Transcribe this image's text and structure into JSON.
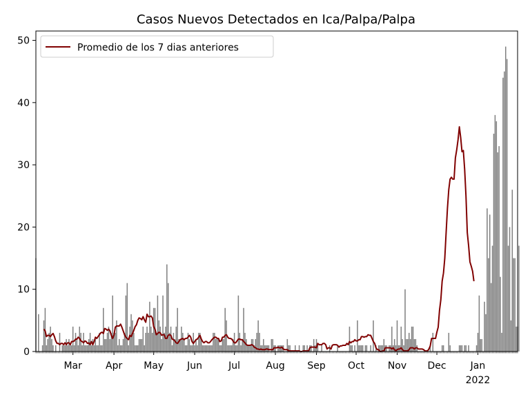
{
  "chart_data": {
    "type": "bar+line",
    "title": "Casos Nuevos Detectados en Ica/Palpa/Palpa",
    "xlabel": "",
    "ylabel": "",
    "x_start": "2021-02-01",
    "x_end": "2022-01-31",
    "ylim": [
      0,
      51.5
    ],
    "y_ticks": [
      0,
      10,
      20,
      30,
      40,
      50
    ],
    "x_ticks": [
      {
        "date": "2021-03-01",
        "label": "Mar",
        "sublabel": ""
      },
      {
        "date": "2021-04-01",
        "label": "Apr",
        "sublabel": ""
      },
      {
        "date": "2021-05-01",
        "label": "May",
        "sublabel": ""
      },
      {
        "date": "2021-06-01",
        "label": "Jun",
        "sublabel": ""
      },
      {
        "date": "2021-07-01",
        "label": "Jul",
        "sublabel": ""
      },
      {
        "date": "2021-08-01",
        "label": "Aug",
        "sublabel": ""
      },
      {
        "date": "2021-09-01",
        "label": "Sep",
        "sublabel": ""
      },
      {
        "date": "2021-10-01",
        "label": "Oct",
        "sublabel": ""
      },
      {
        "date": "2021-11-01",
        "label": "Nov",
        "sublabel": ""
      },
      {
        "date": "2021-12-01",
        "label": "Dec",
        "sublabel": ""
      },
      {
        "date": "2022-01-01",
        "label": "Jan",
        "sublabel": "2022"
      }
    ],
    "legend": {
      "location": "upper-left",
      "entries": [
        "Promedio de los 7 dias anteriores"
      ]
    },
    "grid": false,
    "series": [
      {
        "kind": "bar",
        "color": "#808080",
        "start_date": "2021-02-01",
        "values": [
          15,
          0,
          6,
          0,
          0,
          1,
          5,
          7,
          1,
          2,
          3,
          4,
          2,
          1,
          0,
          1,
          0,
          0,
          3,
          0,
          1,
          1,
          1,
          2,
          1,
          2,
          1,
          1,
          4,
          1,
          3,
          2,
          1,
          4,
          3,
          1,
          3,
          1,
          1,
          1,
          2,
          3,
          1,
          2,
          1,
          2,
          1,
          1,
          3,
          1,
          1,
          7,
          2,
          2,
          3,
          4,
          2,
          3,
          9,
          3,
          3,
          5,
          1,
          2,
          1,
          1,
          2,
          3,
          9,
          11,
          1,
          4,
          6,
          5,
          3,
          1,
          1,
          1,
          2,
          2,
          2,
          4,
          1,
          3,
          4,
          3,
          8,
          4,
          3,
          7,
          7,
          3,
          9,
          5,
          4,
          2,
          9,
          3,
          4,
          14,
          11,
          3,
          4,
          1,
          3,
          2,
          4,
          7,
          2,
          2,
          4,
          3,
          2,
          1,
          1,
          3,
          2,
          1,
          1,
          3,
          1,
          2,
          1,
          3,
          3,
          2,
          1,
          1,
          1,
          1,
          1,
          1,
          1,
          1,
          3,
          3,
          2,
          2,
          2,
          1,
          1,
          2,
          2,
          7,
          5,
          1,
          1,
          1,
          1,
          2,
          3,
          1,
          1,
          9,
          3,
          1,
          2,
          7,
          3,
          2,
          1,
          1,
          1,
          2,
          2,
          1,
          2,
          3,
          5,
          3,
          1,
          1,
          2,
          1,
          1,
          1,
          1,
          0,
          2,
          2,
          1,
          1,
          0,
          1,
          1,
          1,
          1,
          1,
          0,
          0,
          2,
          1,
          1,
          0,
          0,
          0,
          1,
          0,
          0,
          1,
          0,
          0,
          1,
          1,
          0,
          1,
          0,
          1,
          1,
          0,
          2,
          1,
          2,
          1,
          0,
          0,
          1,
          0,
          0,
          0,
          0,
          0,
          1,
          0,
          0,
          0,
          0,
          0,
          1,
          0,
          0,
          0,
          0,
          0,
          0,
          0,
          0,
          4,
          1,
          1,
          0,
          1,
          0,
          5,
          1,
          1,
          1,
          1,
          0,
          1,
          1,
          0,
          0,
          1,
          0,
          5,
          0,
          1,
          0,
          1,
          1,
          1,
          1,
          2,
          1,
          1,
          0,
          1,
          1,
          4,
          1,
          2,
          1,
          5,
          1,
          1,
          4,
          2,
          1,
          10,
          2,
          2,
          3,
          2,
          4,
          4,
          2,
          2,
          1,
          0,
          0,
          0,
          0,
          0,
          0,
          0,
          0,
          0,
          1,
          0,
          3,
          0,
          0,
          0,
          0,
          0,
          0,
          1,
          1,
          0,
          0,
          0,
          3,
          1,
          0,
          0,
          0,
          0,
          0,
          0,
          1,
          1,
          1,
          0,
          1,
          1,
          0,
          1,
          0,
          0,
          0,
          0,
          0,
          1,
          3,
          9,
          2,
          2,
          0,
          8,
          6,
          23,
          15,
          22,
          11,
          17,
          35,
          38,
          37,
          32,
          33,
          12,
          3,
          44,
          45,
          49,
          47,
          17,
          20,
          5,
          26,
          15,
          15,
          4,
          4,
          17
        ]
      },
      {
        "kind": "line",
        "name": "Promedio de los 7 dias anteriores",
        "color": "#800000",
        "start_date": "2021-02-07",
        "values": [
          3.6,
          3.3,
          2.4,
          2.6,
          2.6,
          2.4,
          2.7,
          2.9,
          2.4,
          1.7,
          1.3,
          1.3,
          1.1,
          1.3,
          1.3,
          1.1,
          1.4,
          1.1,
          1.4,
          1.4,
          1.1,
          1.6,
          1.6,
          1.7,
          2.0,
          2.0,
          2.3,
          2.1,
          1.7,
          1.6,
          1.4,
          1.7,
          1.6,
          1.3,
          1.4,
          1.1,
          1.6,
          1.1,
          1.6,
          2.3,
          2.1,
          2.4,
          2.7,
          3.0,
          3.1,
          2.9,
          3.7,
          3.6,
          3.4,
          3.6,
          3.3,
          2.6,
          2.1,
          2.6,
          3.9,
          4.1,
          4.1,
          4.1,
          4.4,
          3.9,
          3.3,
          2.7,
          2.3,
          2.1,
          1.9,
          2.6,
          2.4,
          2.9,
          3.4,
          4.0,
          4.3,
          5.0,
          5.4,
          5.3,
          5.1,
          5.6,
          5.1,
          4.7,
          6.0,
          5.6,
          5.6,
          5.7,
          5.4,
          4.0,
          3.6,
          2.7,
          2.9,
          3.1,
          3.0,
          2.6,
          2.7,
          2.7,
          2.1,
          2.1,
          2.6,
          2.7,
          2.6,
          2.0,
          1.9,
          1.7,
          1.4,
          1.3,
          1.6,
          1.9,
          2.0,
          2.1,
          1.9,
          2.1,
          2.1,
          2.3,
          2.6,
          2.3,
          1.6,
          1.3,
          1.6,
          1.9,
          2.0,
          2.3,
          2.6,
          2.0,
          1.6,
          1.4,
          1.6,
          1.6,
          1.4,
          1.4,
          1.6,
          1.9,
          2.1,
          2.3,
          2.3,
          2.1,
          2.1,
          1.6,
          1.7,
          2.3,
          2.3,
          2.6,
          2.7,
          2.3,
          2.1,
          2.1,
          2.0,
          1.7,
          1.4,
          1.4,
          1.7,
          2.0,
          2.0,
          1.9,
          1.9,
          1.6,
          1.4,
          1.1,
          1.0,
          1.0,
          1.0,
          1.1,
          1.0,
          0.7,
          0.6,
          0.4,
          0.4,
          0.3,
          0.4,
          0.3,
          0.3,
          0.3,
          0.4,
          0.4,
          0.3,
          0.3,
          0.3,
          0.3,
          0.6,
          0.6,
          0.6,
          0.7,
          0.6,
          0.6,
          0.7,
          0.4,
          0.3,
          0.3,
          0.3,
          0.1,
          0.1,
          0.1,
          0.1,
          0.1,
          0.1,
          0.1,
          0.1,
          0.1,
          0.0,
          0.0,
          0.1,
          0.1,
          0.1,
          0.1,
          0.1,
          0.6,
          0.7,
          0.7,
          0.7,
          0.7,
          0.6,
          1.3,
          1.1,
          1.1,
          1.1,
          1.3,
          1.3,
          1.1,
          0.4,
          0.6,
          0.6,
          0.4,
          1.0,
          1.1,
          1.1,
          1.1,
          1.0,
          0.7,
          0.9,
          0.9,
          1.0,
          1.0,
          1.0,
          1.3,
          1.1,
          1.6,
          1.4,
          1.6,
          1.6,
          1.9,
          1.7,
          1.7,
          1.9,
          1.9,
          2.4,
          2.4,
          2.3,
          2.4,
          2.4,
          2.7,
          2.6,
          2.6,
          2.1,
          1.6,
          1.3,
          0.6,
          0.3,
          0.3,
          0.0,
          0.0,
          0.1,
          0.1,
          0.6,
          0.6,
          0.6,
          0.6,
          0.6,
          0.4,
          0.6,
          0.3,
          0.1,
          0.3,
          0.4,
          0.4,
          0.6,
          0.3,
          0.1,
          0.1,
          0.1,
          0.1,
          0.3,
          0.6,
          0.6,
          0.6,
          0.4,
          0.6,
          0.6,
          0.4,
          0.4,
          0.4,
          0.4,
          0.3,
          0.1,
          0.1,
          0.1,
          0.4,
          0.9,
          2.1,
          2.1,
          2.1,
          2.1,
          3.1,
          3.9,
          6.6,
          8.3,
          11.3,
          12.6,
          15.0,
          19.1,
          23.0,
          26.0,
          27.7,
          28.0,
          27.7,
          27.7,
          31.1,
          32.4,
          34.0,
          36.1,
          34.4,
          32.1,
          32.3,
          29.3,
          25.0,
          19.1,
          17.0,
          14.4,
          13.7,
          12.9,
          11.3
        ]
      }
    ]
  }
}
